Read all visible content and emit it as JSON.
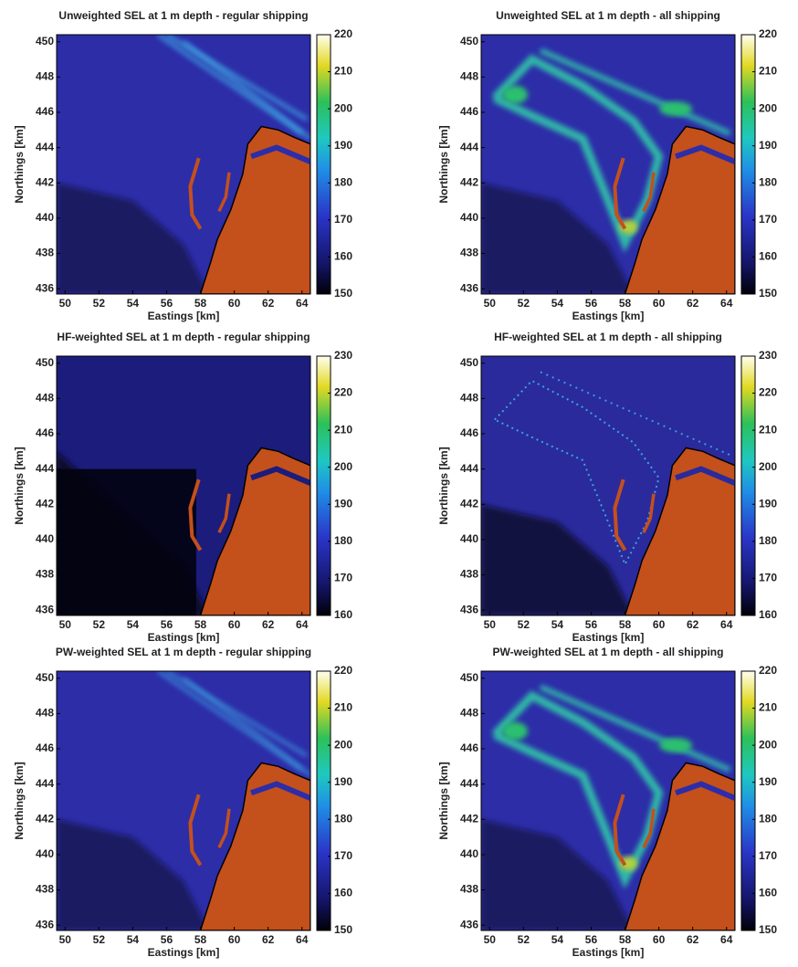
{
  "chart_data": [
    {
      "type": "heatmap",
      "title": "Unweighted SEL at 1 m depth - regular shipping",
      "xlabel": "Eastings [km]",
      "ylabel": "Northings [km]",
      "xlim": [
        49.5,
        64.5
      ],
      "xticks": [
        50,
        52,
        54,
        56,
        58,
        60,
        62,
        64
      ],
      "ylim": [
        435.7,
        450.4
      ],
      "yticks": [
        436,
        438,
        440,
        442,
        444,
        446,
        448,
        450
      ],
      "clim": [
        150,
        220
      ],
      "cticks": [
        150,
        160,
        170,
        180,
        190,
        200,
        210,
        220
      ]
    },
    {
      "type": "heatmap",
      "title": "Unweighted SEL at 1 m depth - all shipping",
      "xlabel": "Eastings [km]",
      "ylabel": "Northings [km]",
      "xlim": [
        49.5,
        64.5
      ],
      "xticks": [
        50,
        52,
        54,
        56,
        58,
        60,
        62,
        64
      ],
      "ylim": [
        435.7,
        450.4
      ],
      "yticks": [
        436,
        438,
        440,
        442,
        444,
        446,
        448,
        450
      ],
      "clim": [
        150,
        220
      ],
      "cticks": [
        150,
        160,
        170,
        180,
        190,
        200,
        210,
        220
      ]
    },
    {
      "type": "heatmap",
      "title": "HF-weighted SEL at 1 m depth - regular shipping",
      "xlabel": "Eastings [km]",
      "ylabel": "Northings [km]",
      "xlim": [
        49.5,
        64.5
      ],
      "xticks": [
        50,
        52,
        54,
        56,
        58,
        60,
        62,
        64
      ],
      "ylim": [
        435.7,
        450.4
      ],
      "yticks": [
        436,
        438,
        440,
        442,
        444,
        446,
        448,
        450
      ],
      "clim": [
        160,
        230
      ],
      "cticks": [
        160,
        170,
        180,
        190,
        200,
        210,
        220,
        230
      ]
    },
    {
      "type": "heatmap",
      "title": "HF-weighted SEL at 1 m depth - all shipping",
      "xlabel": "Eastings [km]",
      "ylabel": "Northings [km]",
      "xlim": [
        49.5,
        64.5
      ],
      "xticks": [
        50,
        52,
        54,
        56,
        58,
        60,
        62,
        64
      ],
      "ylim": [
        435.7,
        450.4
      ],
      "yticks": [
        436,
        438,
        440,
        442,
        444,
        446,
        448,
        450
      ],
      "clim": [
        160,
        230
      ],
      "cticks": [
        160,
        170,
        180,
        190,
        200,
        210,
        220,
        230
      ]
    },
    {
      "type": "heatmap",
      "title": "PW-weighted SEL at 1 m depth - regular shipping",
      "xlabel": "Eastings [km]",
      "ylabel": "Northings [km]",
      "xlim": [
        49.5,
        64.5
      ],
      "xticks": [
        50,
        52,
        54,
        56,
        58,
        60,
        62,
        64
      ],
      "ylim": [
        435.7,
        450.4
      ],
      "yticks": [
        436,
        438,
        440,
        442,
        444,
        446,
        448,
        450
      ],
      "clim": [
        150,
        220
      ],
      "cticks": [
        150,
        160,
        170,
        180,
        190,
        200,
        210,
        220
      ]
    },
    {
      "type": "heatmap",
      "title": "PW-weighted SEL at 1 m depth - all shipping",
      "xlabel": "Eastings [km]",
      "ylabel": "Northings [km]",
      "xlim": [
        49.5,
        64.5
      ],
      "xticks": [
        50,
        52,
        54,
        56,
        58,
        60,
        62,
        64
      ],
      "ylim": [
        435.7,
        450.4
      ],
      "yticks": [
        436,
        438,
        440,
        442,
        444,
        446,
        448,
        450
      ],
      "clim": [
        150,
        220
      ],
      "cticks": [
        150,
        160,
        170,
        180,
        190,
        200,
        210,
        220
      ]
    }
  ]
}
